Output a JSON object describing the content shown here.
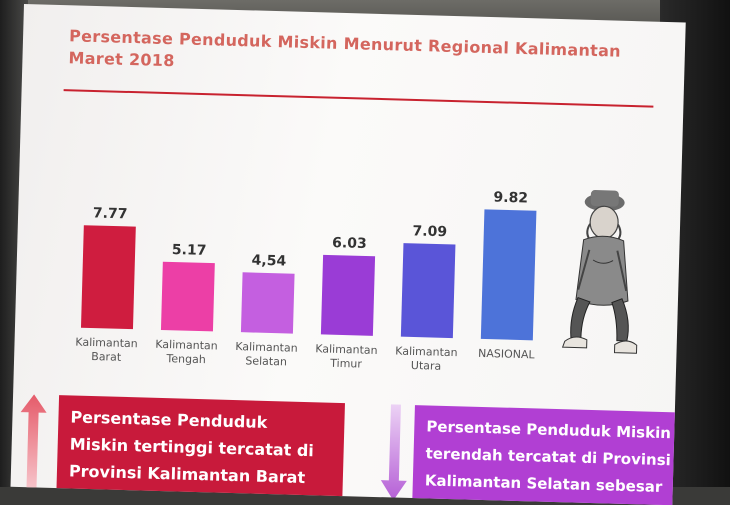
{
  "slide": {
    "title_line1": "Persentase Penduduk Miskin Menurut Regional Kalimantan",
    "title_line2": "Maret 2018"
  },
  "chart_data": {
    "type": "bar",
    "title": "Persentase Penduduk Miskin Menurut Regional Kalimantan Maret 2018",
    "categories": [
      [
        "Kalimantan",
        "Barat"
      ],
      [
        "Kalimantan",
        "Tengah"
      ],
      [
        "Kalimantan",
        "Selatan"
      ],
      [
        "Kalimantan",
        "Timur"
      ],
      [
        "Kalimantan",
        "Utara"
      ],
      [
        "NASIONAL"
      ]
    ],
    "values": [
      7.77,
      5.17,
      4.54,
      6.03,
      7.09,
      9.82
    ],
    "value_labels": [
      "7.77",
      "5.17",
      "4,54",
      "6.03",
      "7.09",
      "9.82"
    ],
    "colors": [
      "#cf1d3f",
      "#ec3fa6",
      "#c45fe0",
      "#9a3cd6",
      "#5a55d8",
      "#4d73d9"
    ],
    "xlabel": "",
    "ylabel": "",
    "grid": false,
    "legend": "none"
  },
  "callouts": {
    "highest_lines": [
      "Persentase Penduduk",
      "Miskin tertinggi tercatat di",
      "Provinsi Kalimantan Barat"
    ],
    "lowest_lines": [
      "Persentase Penduduk Miskin",
      "terendah tercatat di Provinsi",
      "Kalimantan Selatan sebesar"
    ],
    "highest_color": "#c81a3b",
    "lowest_color": "#b13fd3"
  },
  "icons": {
    "illustration": "sad-man-with-hat-illustration",
    "up_arrow": "up-arrow-icon",
    "down_arrow": "down-arrow-icon"
  }
}
